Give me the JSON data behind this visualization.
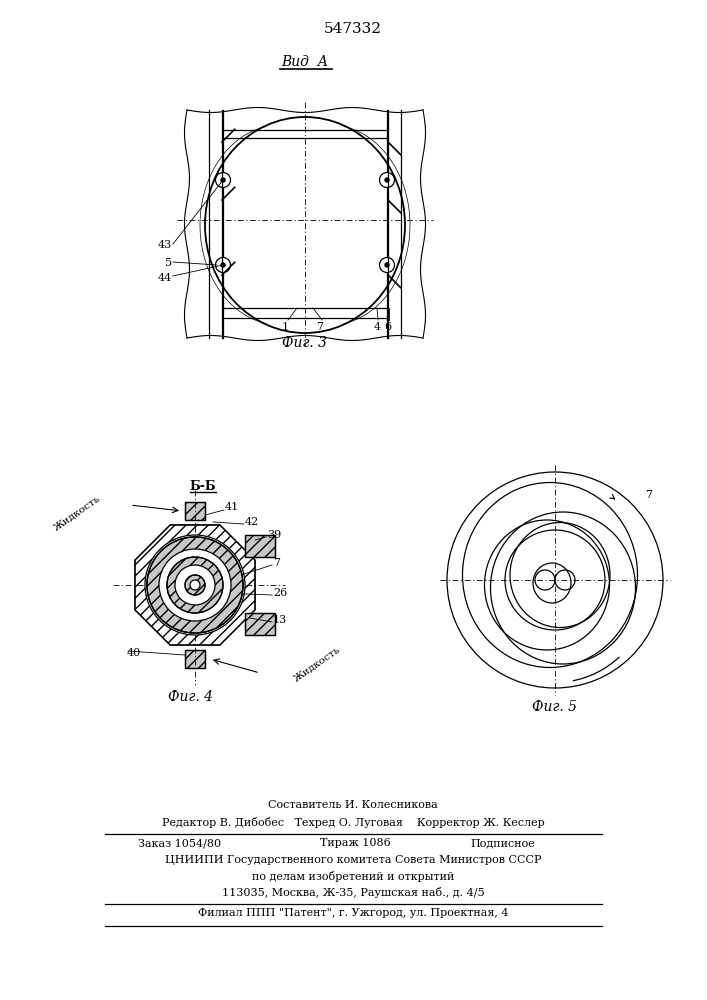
{
  "title": "547332",
  "fig3_label": "Фиг. 3",
  "fig4_label": "Фиг. 4",
  "fig5_label": "Фиг. 5",
  "vid_a_label": "Вид А",
  "bb_label": "Б-Б",
  "footer_line1": "Составитель И. Колесникова",
  "footer_line2": "Редактор В. Дибобес   Техред О. Луговая    Корректор Ж. Кеслер",
  "footer_line3a": "Заказ 1054/80",
  "footer_line3b": "Тираж 1086",
  "footer_line3c": "Подписное",
  "footer_line4": "ЦНИИПИ Государственного комитета Совета Министров СССР",
  "footer_line5": "по делам изобретений и открытий",
  "footer_line6": "113035, Москва, Ж-35, Раушская наб., д. 4/5",
  "footer_line7": "Филиал ППП \"Патент\", г. Ужгород, ул. Проектная, 4",
  "bg_color": "#ffffff",
  "line_color": "#000000"
}
